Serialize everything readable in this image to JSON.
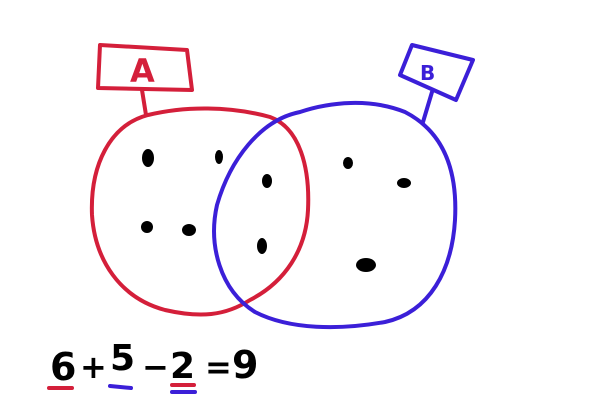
{
  "sets": {
    "a": {
      "label": "A",
      "color": "#d41f3a",
      "element_count": 6
    },
    "b": {
      "label": "B",
      "color": "#3b1fd8",
      "element_count": 5
    }
  },
  "intersection": {
    "element_count": 2
  },
  "union": {
    "element_count": 9
  },
  "equation": {
    "a_count": "6",
    "plus": "+",
    "b_count": "5",
    "minus": "−",
    "overlap_count": "2",
    "equals": "=",
    "result": "9"
  },
  "colors": {
    "background": "#ffffff",
    "ink": "#000000",
    "set_a": "#d41f3a",
    "set_b": "#3b1fd8"
  }
}
